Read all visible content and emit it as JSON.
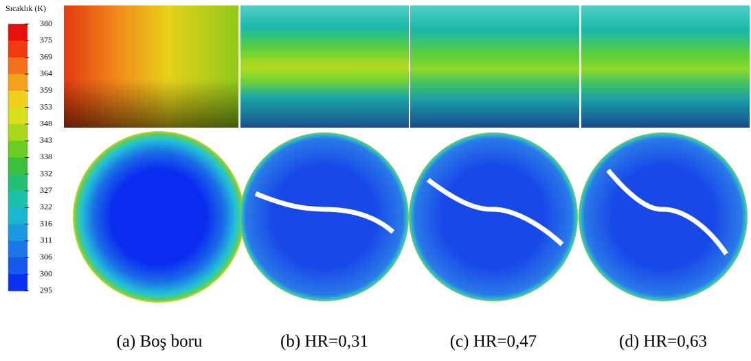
{
  "colorbar": {
    "title": "Sıcaklık (K)",
    "ticks": [
      380,
      375,
      369,
      364,
      359,
      353,
      348,
      343,
      338,
      332,
      327,
      322,
      316,
      311,
      306,
      300,
      295
    ]
  },
  "captions": [
    "(a) Boş boru",
    "(b) HR=0,31",
    "(c) HR=0,47",
    "(d) HR=0,63"
  ]
}
